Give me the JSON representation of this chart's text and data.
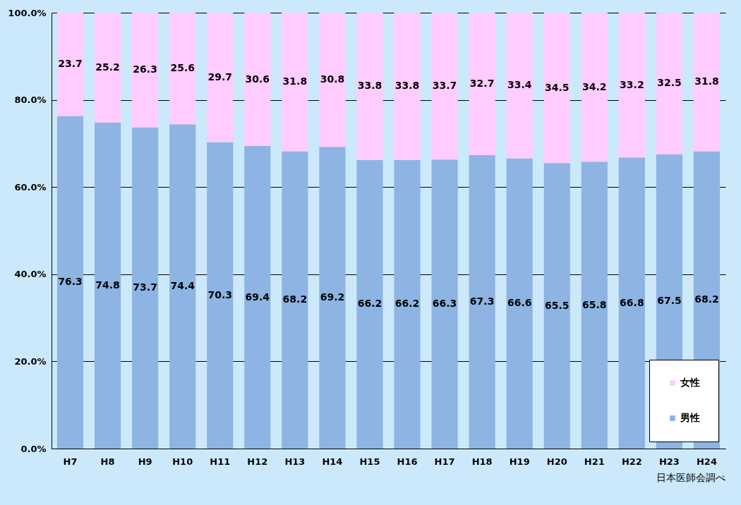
{
  "chart_data": {
    "type": "bar",
    "stacked": true,
    "categories": [
      "H7",
      "H8",
      "H9",
      "H10",
      "H11",
      "H12",
      "H13",
      "H14",
      "H15",
      "H16",
      "H17",
      "H18",
      "H19",
      "H20",
      "H21",
      "H22",
      "H23",
      "H24"
    ],
    "series": [
      {
        "name": "男性",
        "color": "#8db4e2",
        "values": [
          76.3,
          74.8,
          73.7,
          74.4,
          70.3,
          69.4,
          68.2,
          69.2,
          66.2,
          66.2,
          66.3,
          67.3,
          66.6,
          65.5,
          65.8,
          66.8,
          67.5,
          68.2
        ]
      },
      {
        "name": "女性",
        "color": "#ffccff",
        "values": [
          23.7,
          25.2,
          26.3,
          25.6,
          29.7,
          30.6,
          31.8,
          30.8,
          33.8,
          33.8,
          33.7,
          32.7,
          33.4,
          34.5,
          34.2,
          33.2,
          32.5,
          31.8
        ]
      }
    ],
    "ylim": [
      0,
      100
    ],
    "yticks": [
      {
        "value": 0,
        "label": "0.0%"
      },
      {
        "value": 20,
        "label": "20.0%"
      },
      {
        "value": 40,
        "label": "40.0%"
      },
      {
        "value": 60,
        "label": "60.0%"
      },
      {
        "value": 80,
        "label": "80.0%"
      },
      {
        "value": 100,
        "label": "100.0%"
      }
    ],
    "grid": "y",
    "legend": "bottom right",
    "data_labels": true,
    "annotations": [
      "日本医師会調べ"
    ]
  }
}
